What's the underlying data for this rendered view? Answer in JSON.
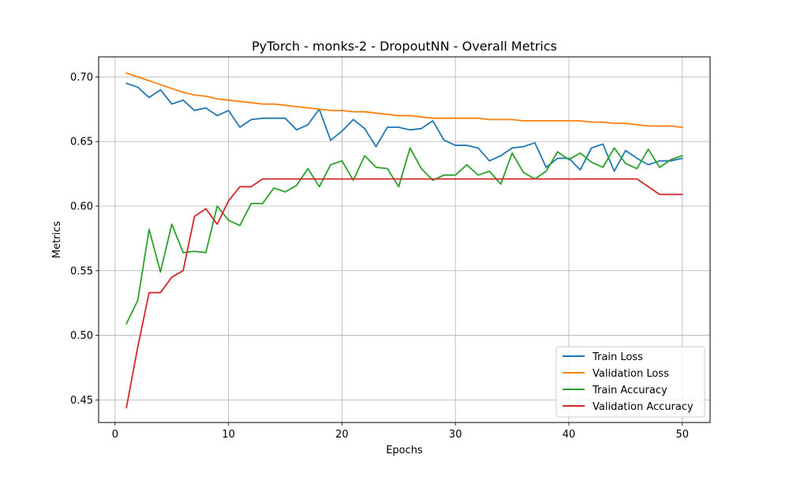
{
  "chart_data": {
    "type": "line",
    "title": "PyTorch - monks-2 - DropoutNN - Overall Metrics",
    "xlabel": "Epochs",
    "ylabel": "Metrics",
    "xlim": [
      -1.45,
      52.45
    ],
    "ylim": [
      0.4325,
      0.7155
    ],
    "xticks": [
      0,
      10,
      20,
      30,
      40,
      50
    ],
    "yticks": [
      0.45,
      0.5,
      0.55,
      0.6,
      0.65,
      0.7
    ],
    "ytick_labels": [
      "0.45",
      "0.50",
      "0.55",
      "0.60",
      "0.65",
      "0.70"
    ],
    "grid": true,
    "legend_position": "lower right",
    "x": [
      1,
      2,
      3,
      4,
      5,
      6,
      7,
      8,
      9,
      10,
      11,
      12,
      13,
      14,
      15,
      16,
      17,
      18,
      19,
      20,
      21,
      22,
      23,
      24,
      25,
      26,
      27,
      28,
      29,
      30,
      31,
      32,
      33,
      34,
      35,
      36,
      37,
      38,
      39,
      40,
      41,
      42,
      43,
      44,
      45,
      46,
      47,
      48,
      49,
      50
    ],
    "series": [
      {
        "name": "Train Loss",
        "color": "#1f77b4",
        "values": [
          0.695,
          0.692,
          0.684,
          0.69,
          0.679,
          0.682,
          0.674,
          0.676,
          0.67,
          0.674,
          0.661,
          0.667,
          0.668,
          0.668,
          0.668,
          0.659,
          0.663,
          0.675,
          0.651,
          0.658,
          0.667,
          0.66,
          0.646,
          0.661,
          0.661,
          0.659,
          0.66,
          0.666,
          0.651,
          0.647,
          0.647,
          0.645,
          0.635,
          0.639,
          0.645,
          0.646,
          0.649,
          0.63,
          0.637,
          0.637,
          0.628,
          0.645,
          0.648,
          0.627,
          0.643,
          0.637,
          0.632,
          0.635,
          0.635,
          0.637
        ]
      },
      {
        "name": "Validation Loss",
        "color": "#ff7f0e",
        "values": [
          0.703,
          0.7,
          0.697,
          0.694,
          0.691,
          0.688,
          0.686,
          0.685,
          0.683,
          0.682,
          0.681,
          0.68,
          0.679,
          0.679,
          0.678,
          0.677,
          0.676,
          0.675,
          0.674,
          0.674,
          0.673,
          0.673,
          0.672,
          0.671,
          0.67,
          0.67,
          0.669,
          0.668,
          0.668,
          0.668,
          0.668,
          0.668,
          0.667,
          0.667,
          0.667,
          0.666,
          0.666,
          0.666,
          0.666,
          0.666,
          0.666,
          0.665,
          0.665,
          0.664,
          0.664,
          0.663,
          0.662,
          0.662,
          0.662,
          0.661
        ]
      },
      {
        "name": "Train Accuracy",
        "color": "#2ca02c",
        "values": [
          0.509,
          0.527,
          0.582,
          0.549,
          0.586,
          0.564,
          0.565,
          0.564,
          0.6,
          0.589,
          0.585,
          0.602,
          0.602,
          0.614,
          0.611,
          0.616,
          0.629,
          0.615,
          0.632,
          0.635,
          0.62,
          0.639,
          0.63,
          0.629,
          0.615,
          0.645,
          0.629,
          0.62,
          0.624,
          0.624,
          0.632,
          0.624,
          0.627,
          0.617,
          0.641,
          0.626,
          0.621,
          0.627,
          0.642,
          0.636,
          0.641,
          0.634,
          0.63,
          0.645,
          0.633,
          0.629,
          0.644,
          0.63,
          0.636,
          0.639
        ]
      },
      {
        "name": "Validation Accuracy",
        "color": "#d62728",
        "values": [
          0.444,
          0.491,
          0.533,
          0.533,
          0.545,
          0.55,
          0.592,
          0.598,
          0.586,
          0.604,
          0.615,
          0.615,
          0.621,
          0.621,
          0.621,
          0.621,
          0.621,
          0.621,
          0.621,
          0.621,
          0.621,
          0.621,
          0.621,
          0.621,
          0.621,
          0.621,
          0.621,
          0.621,
          0.621,
          0.621,
          0.621,
          0.621,
          0.621,
          0.621,
          0.621,
          0.621,
          0.621,
          0.621,
          0.621,
          0.621,
          0.621,
          0.621,
          0.621,
          0.621,
          0.621,
          0.621,
          0.615,
          0.609,
          0.609,
          0.609
        ]
      }
    ]
  }
}
